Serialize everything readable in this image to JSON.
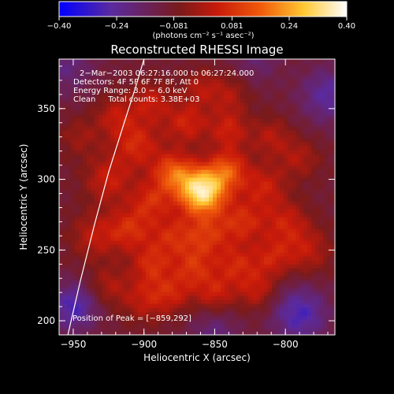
{
  "chart_data": {
    "type": "heatmap",
    "title": "Reconstructed RHESSI Image",
    "xlabel": "Heliocentric X (arcsec)",
    "ylabel": "Heliocentric Y (arcsec)",
    "xlim": [
      -960,
      -765
    ],
    "ylim": [
      190,
      385
    ],
    "xticks": [
      -950,
      -900,
      -850,
      -800
    ],
    "yticks": [
      200,
      250,
      300,
      350
    ],
    "colorbar": {
      "ticks": [
        -0.4,
        -0.24,
        -0.081,
        0.081,
        0.24,
        0.4
      ],
      "tick_labels": [
        "−0.40",
        "−0.24",
        "−0.081",
        "0.081",
        "0.24",
        "0.40"
      ],
      "unit": "(photons cm⁻² s⁻¹ asec⁻²)",
      "range": [
        -0.4,
        0.4
      ]
    },
    "annotations": [
      "2−Mar−2003 06:27:16.000 to 06:27:24.000",
      "Detectors: 4F 5F 6F 7F 8F, Att 0",
      "Energy Range: 3.0 − 6.0 keV",
      "Clean     Total counts: 3.38E+03"
    ],
    "peak_label": "Position of Peak = [−859,292]",
    "peak": {
      "x": -859,
      "y": 292
    },
    "limb_curve": [
      {
        "x": -955,
        "y": 185
      },
      {
        "x": -945,
        "y": 228
      },
      {
        "x": -935,
        "y": 268
      },
      {
        "x": -925,
        "y": 305
      },
      {
        "x": -914,
        "y": 340
      },
      {
        "x": -905,
        "y": 368
      },
      {
        "x": -900,
        "y": 385
      }
    ],
    "blobs": [
      {
        "x": -859,
        "y": 292,
        "s": 12,
        "a": 0.45
      },
      {
        "x": -880,
        "y": 305,
        "s": 10,
        "a": 0.22
      },
      {
        "x": -840,
        "y": 307,
        "s": 10,
        "a": 0.2
      },
      {
        "x": -870,
        "y": 340,
        "s": 11,
        "a": 0.15
      },
      {
        "x": -840,
        "y": 335,
        "s": 10,
        "a": 0.14
      },
      {
        "x": -905,
        "y": 325,
        "s": 12,
        "a": 0.16
      },
      {
        "x": -925,
        "y": 300,
        "s": 12,
        "a": 0.14
      },
      {
        "x": -935,
        "y": 260,
        "s": 12,
        "a": 0.12
      },
      {
        "x": -910,
        "y": 265,
        "s": 11,
        "a": 0.16
      },
      {
        "x": -895,
        "y": 285,
        "s": 10,
        "a": 0.15
      },
      {
        "x": -880,
        "y": 260,
        "s": 11,
        "a": 0.15
      },
      {
        "x": -855,
        "y": 260,
        "s": 11,
        "a": 0.16
      },
      {
        "x": -830,
        "y": 270,
        "s": 11,
        "a": 0.16
      },
      {
        "x": -815,
        "y": 295,
        "s": 11,
        "a": 0.14
      },
      {
        "x": -800,
        "y": 270,
        "s": 11,
        "a": 0.13
      },
      {
        "x": -785,
        "y": 250,
        "s": 12,
        "a": 0.12
      },
      {
        "x": -810,
        "y": 245,
        "s": 10,
        "a": 0.13
      },
      {
        "x": -835,
        "y": 240,
        "s": 10,
        "a": 0.14
      },
      {
        "x": -865,
        "y": 238,
        "s": 10,
        "a": 0.15
      },
      {
        "x": -895,
        "y": 240,
        "s": 10,
        "a": 0.15
      },
      {
        "x": -880,
        "y": 220,
        "s": 10,
        "a": 0.13
      },
      {
        "x": -850,
        "y": 220,
        "s": 10,
        "a": 0.14
      },
      {
        "x": -820,
        "y": 222,
        "s": 10,
        "a": 0.13
      },
      {
        "x": -900,
        "y": 215,
        "s": 11,
        "a": 0.12
      },
      {
        "x": -925,
        "y": 225,
        "s": 10,
        "a": 0.1
      },
      {
        "x": -920,
        "y": 345,
        "s": 10,
        "a": 0.12
      },
      {
        "x": -895,
        "y": 355,
        "s": 10,
        "a": 0.13
      },
      {
        "x": -840,
        "y": 360,
        "s": 10,
        "a": 0.1
      },
      {
        "x": -810,
        "y": 330,
        "s": 10,
        "a": 0.11
      },
      {
        "x": -790,
        "y": 315,
        "s": 10,
        "a": 0.1
      },
      {
        "x": -860,
        "y": 365,
        "s": 9,
        "a": 0.1
      },
      {
        "x": -945,
        "y": 330,
        "s": 10,
        "a": 0.08
      },
      {
        "x": -950,
        "y": 210,
        "s": 12,
        "a": -0.18
      },
      {
        "x": -790,
        "y": 205,
        "s": 14,
        "a": -0.18
      },
      {
        "x": -770,
        "y": 360,
        "s": 14,
        "a": -0.15
      },
      {
        "x": -955,
        "y": 380,
        "s": 14,
        "a": -0.1
      },
      {
        "x": -820,
        "y": 385,
        "s": 12,
        "a": -0.08
      },
      {
        "x": -850,
        "y": 192,
        "s": 12,
        "a": -0.1
      }
    ],
    "background": -0.1
  }
}
